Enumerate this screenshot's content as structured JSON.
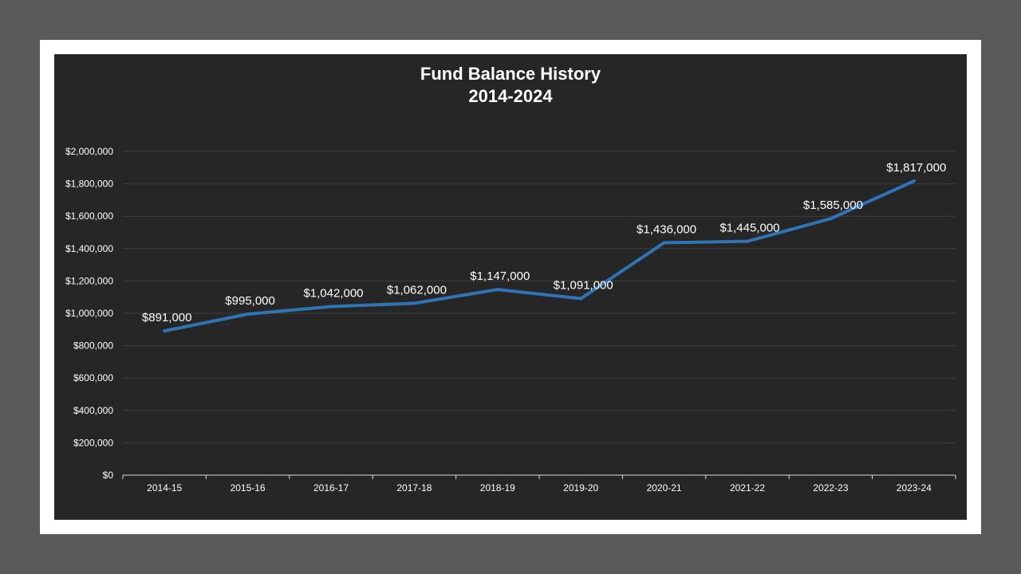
{
  "chart_data": {
    "type": "line",
    "title": "Fund Balance History",
    "subtitle": "2014-2024",
    "xlabel": "",
    "ylabel": "",
    "categories": [
      "2014-15",
      "2015-16",
      "2016-17",
      "2017-18",
      "2018-19",
      "2019-20",
      "2020-21",
      "2021-22",
      "2022-23",
      "2023-24"
    ],
    "values": [
      891000,
      995000,
      1042000,
      1062000,
      1147000,
      1091000,
      1436000,
      1445000,
      1585000,
      1817000
    ],
    "data_labels": [
      "$891,000",
      "$995,000",
      "$1,042,000",
      "$1,062,000",
      "$1,147,000",
      "$1,091,000",
      "$1,436,000",
      "$1,445,000",
      "$1,585,000",
      "$1,817,000"
    ],
    "y_ticks": [
      0,
      200000,
      400000,
      600000,
      800000,
      1000000,
      1200000,
      1400000,
      1600000,
      1800000,
      2000000
    ],
    "y_tick_labels": [
      "$0",
      "$200,000",
      "$400,000",
      "$600,000",
      "$800,000",
      "$1,000,000",
      "$1,200,000",
      "$1,400,000",
      "$1,600,000",
      "$1,800,000",
      "$2,000,000"
    ],
    "ylim": [
      0,
      2000000
    ],
    "grid": true,
    "legend": "none",
    "colors": {
      "line": "#2e75b6",
      "background": "#262626",
      "gridline": "#404040",
      "axis": "#d9d9d9",
      "text": "#ffffff"
    }
  }
}
